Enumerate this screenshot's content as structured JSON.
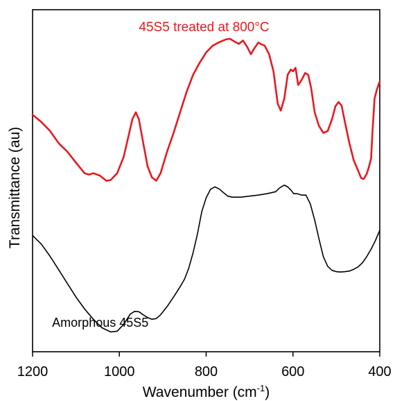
{
  "chart_data": {
    "type": "line",
    "xlabel": "Wavenumber (cm",
    "xlabel_sup": "-1",
    "xlabel_suffix": ")",
    "ylabel": "Transmittance (au)",
    "xlim": [
      1200,
      400
    ],
    "x_reversed": true,
    "ylim": [
      0,
      1
    ],
    "y_ticks_shown": false,
    "grid": false,
    "x_ticks": [
      1200,
      1000,
      800,
      600,
      400
    ],
    "x_tick_labels": [
      "1200",
      "1000",
      "800",
      "600",
      "400"
    ],
    "colors": {
      "treated": "#e8191f",
      "amorphous": "#000000",
      "axis": "#000000"
    },
    "series": [
      {
        "name": "45S5 treated at 800°C",
        "label_position": "top-center",
        "color": "#e8191f",
        "x": [
          1200,
          1180,
          1160,
          1140,
          1120,
          1100,
          1080,
          1070,
          1060,
          1045,
          1030,
          1020,
          1005,
          990,
          980,
          970,
          962,
          955,
          945,
          935,
          925,
          915,
          905,
          890,
          875,
          860,
          845,
          830,
          815,
          800,
          785,
          770,
          755,
          745,
          735,
          725,
          715,
          705,
          697,
          690,
          680,
          673,
          665,
          655,
          645,
          635,
          628,
          620,
          612,
          605,
          600,
          594,
          588,
          580,
          572,
          565,
          558,
          550,
          540,
          530,
          520,
          510,
          502,
          495,
          488,
          480,
          470,
          460,
          450,
          443,
          437,
          430,
          425,
          420,
          417,
          412,
          407,
          403,
          400
        ],
        "y": [
          0.693,
          0.672,
          0.646,
          0.61,
          0.585,
          0.553,
          0.522,
          0.518,
          0.522,
          0.515,
          0.5,
          0.502,
          0.522,
          0.57,
          0.625,
          0.68,
          0.7,
          0.68,
          0.61,
          0.542,
          0.51,
          0.5,
          0.522,
          0.585,
          0.64,
          0.7,
          0.76,
          0.81,
          0.845,
          0.875,
          0.895,
          0.905,
          0.913,
          0.915,
          0.907,
          0.9,
          0.91,
          0.89,
          0.87,
          0.885,
          0.904,
          0.899,
          0.895,
          0.87,
          0.82,
          0.725,
          0.705,
          0.74,
          0.81,
          0.825,
          0.82,
          0.83,
          0.78,
          0.795,
          0.815,
          0.81,
          0.77,
          0.7,
          0.66,
          0.64,
          0.645,
          0.68,
          0.718,
          0.73,
          0.72,
          0.67,
          0.61,
          0.56,
          0.53,
          0.508,
          0.505,
          0.52,
          0.54,
          0.565,
          0.64,
          0.74,
          0.765,
          0.78,
          0.79
        ]
      },
      {
        "name": "Amorphous 45S5",
        "label_position": "bottom-left",
        "color": "#000000",
        "x": [
          1200,
          1180,
          1160,
          1140,
          1120,
          1100,
          1080,
          1060,
          1040,
          1020,
          1005,
          990,
          975,
          965,
          955,
          945,
          935,
          925,
          915,
          905,
          890,
          875,
          860,
          850,
          840,
          830,
          820,
          810,
          800,
          790,
          780,
          770,
          760,
          750,
          740,
          720,
          700,
          680,
          660,
          650,
          640,
          630,
          620,
          612,
          605,
          598,
          590,
          580,
          570,
          560,
          550,
          540,
          530,
          520,
          510,
          500,
          490,
          480,
          470,
          460,
          450,
          440,
          430,
          420,
          410,
          400
        ],
        "y": [
          0.34,
          0.315,
          0.28,
          0.24,
          0.2,
          0.16,
          0.125,
          0.095,
          0.07,
          0.058,
          0.06,
          0.08,
          0.11,
          0.118,
          0.117,
          0.108,
          0.1,
          0.095,
          0.097,
          0.108,
          0.132,
          0.16,
          0.19,
          0.212,
          0.245,
          0.29,
          0.345,
          0.41,
          0.45,
          0.475,
          0.482,
          0.476,
          0.465,
          0.455,
          0.452,
          0.452,
          0.455,
          0.458,
          0.462,
          0.465,
          0.468,
          0.48,
          0.487,
          0.482,
          0.473,
          0.462,
          0.462,
          0.458,
          0.458,
          0.432,
          0.385,
          0.33,
          0.278,
          0.25,
          0.238,
          0.234,
          0.233,
          0.234,
          0.236,
          0.241,
          0.248,
          0.26,
          0.278,
          0.3,
          0.325,
          0.355
        ]
      }
    ]
  }
}
